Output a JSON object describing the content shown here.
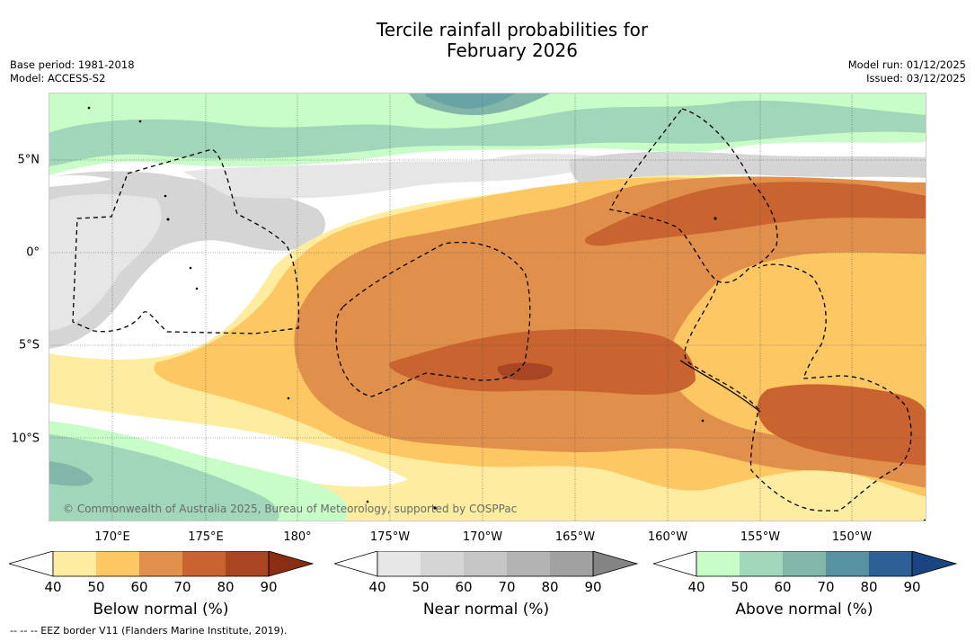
{
  "title_line1": "Tercile rainfall probabilities for",
  "title_line2": "February 2026",
  "meta": {
    "base_period": "Base period: 1981-2018",
    "model": "Model: ACCESS-S2",
    "model_run": "Model run: 01/12/2025",
    "issued": "Issued: 03/12/2025"
  },
  "map": {
    "longitude_ticks": [
      "170°E",
      "175°E",
      "180°",
      "175°W",
      "170°W",
      "165°W",
      "160°W",
      "155°W",
      "150°W"
    ],
    "latitude_ticks": [
      "5°N",
      "0°",
      "5°S",
      "10°S"
    ],
    "credit": "© Commonwealth of Australia 2025, Bureau of Meteorology, supported by COSPPac"
  },
  "colorbars": [
    {
      "title": "Below normal (%)",
      "ticks": [
        "40",
        "50",
        "60",
        "70",
        "80",
        "90"
      ],
      "colors": [
        "#ffffff",
        "#feeda0",
        "#fdc864",
        "#e0904a",
        "#c9632f",
        "#a84624",
        "#8a2d12"
      ]
    },
    {
      "title": "Near normal (%)",
      "ticks": [
        "40",
        "50",
        "60",
        "70",
        "80",
        "90"
      ],
      "colors": [
        "#ffffff",
        "#e6e6e6",
        "#d5d5d5",
        "#c6c6c6",
        "#b3b3b3",
        "#a1a1a1",
        "#848484"
      ]
    },
    {
      "title": "Above normal (%)",
      "ticks": [
        "40",
        "50",
        "60",
        "70",
        "80",
        "90"
      ],
      "colors": [
        "#ffffff",
        "#c8fdc8",
        "#a2d6ba",
        "#82b6a8",
        "#5891a0",
        "#2e6096",
        "#1b4482"
      ]
    }
  ],
  "footnote": "-- -- -- EEZ border V11 (Flanders Marine Institute, 2019)."
}
